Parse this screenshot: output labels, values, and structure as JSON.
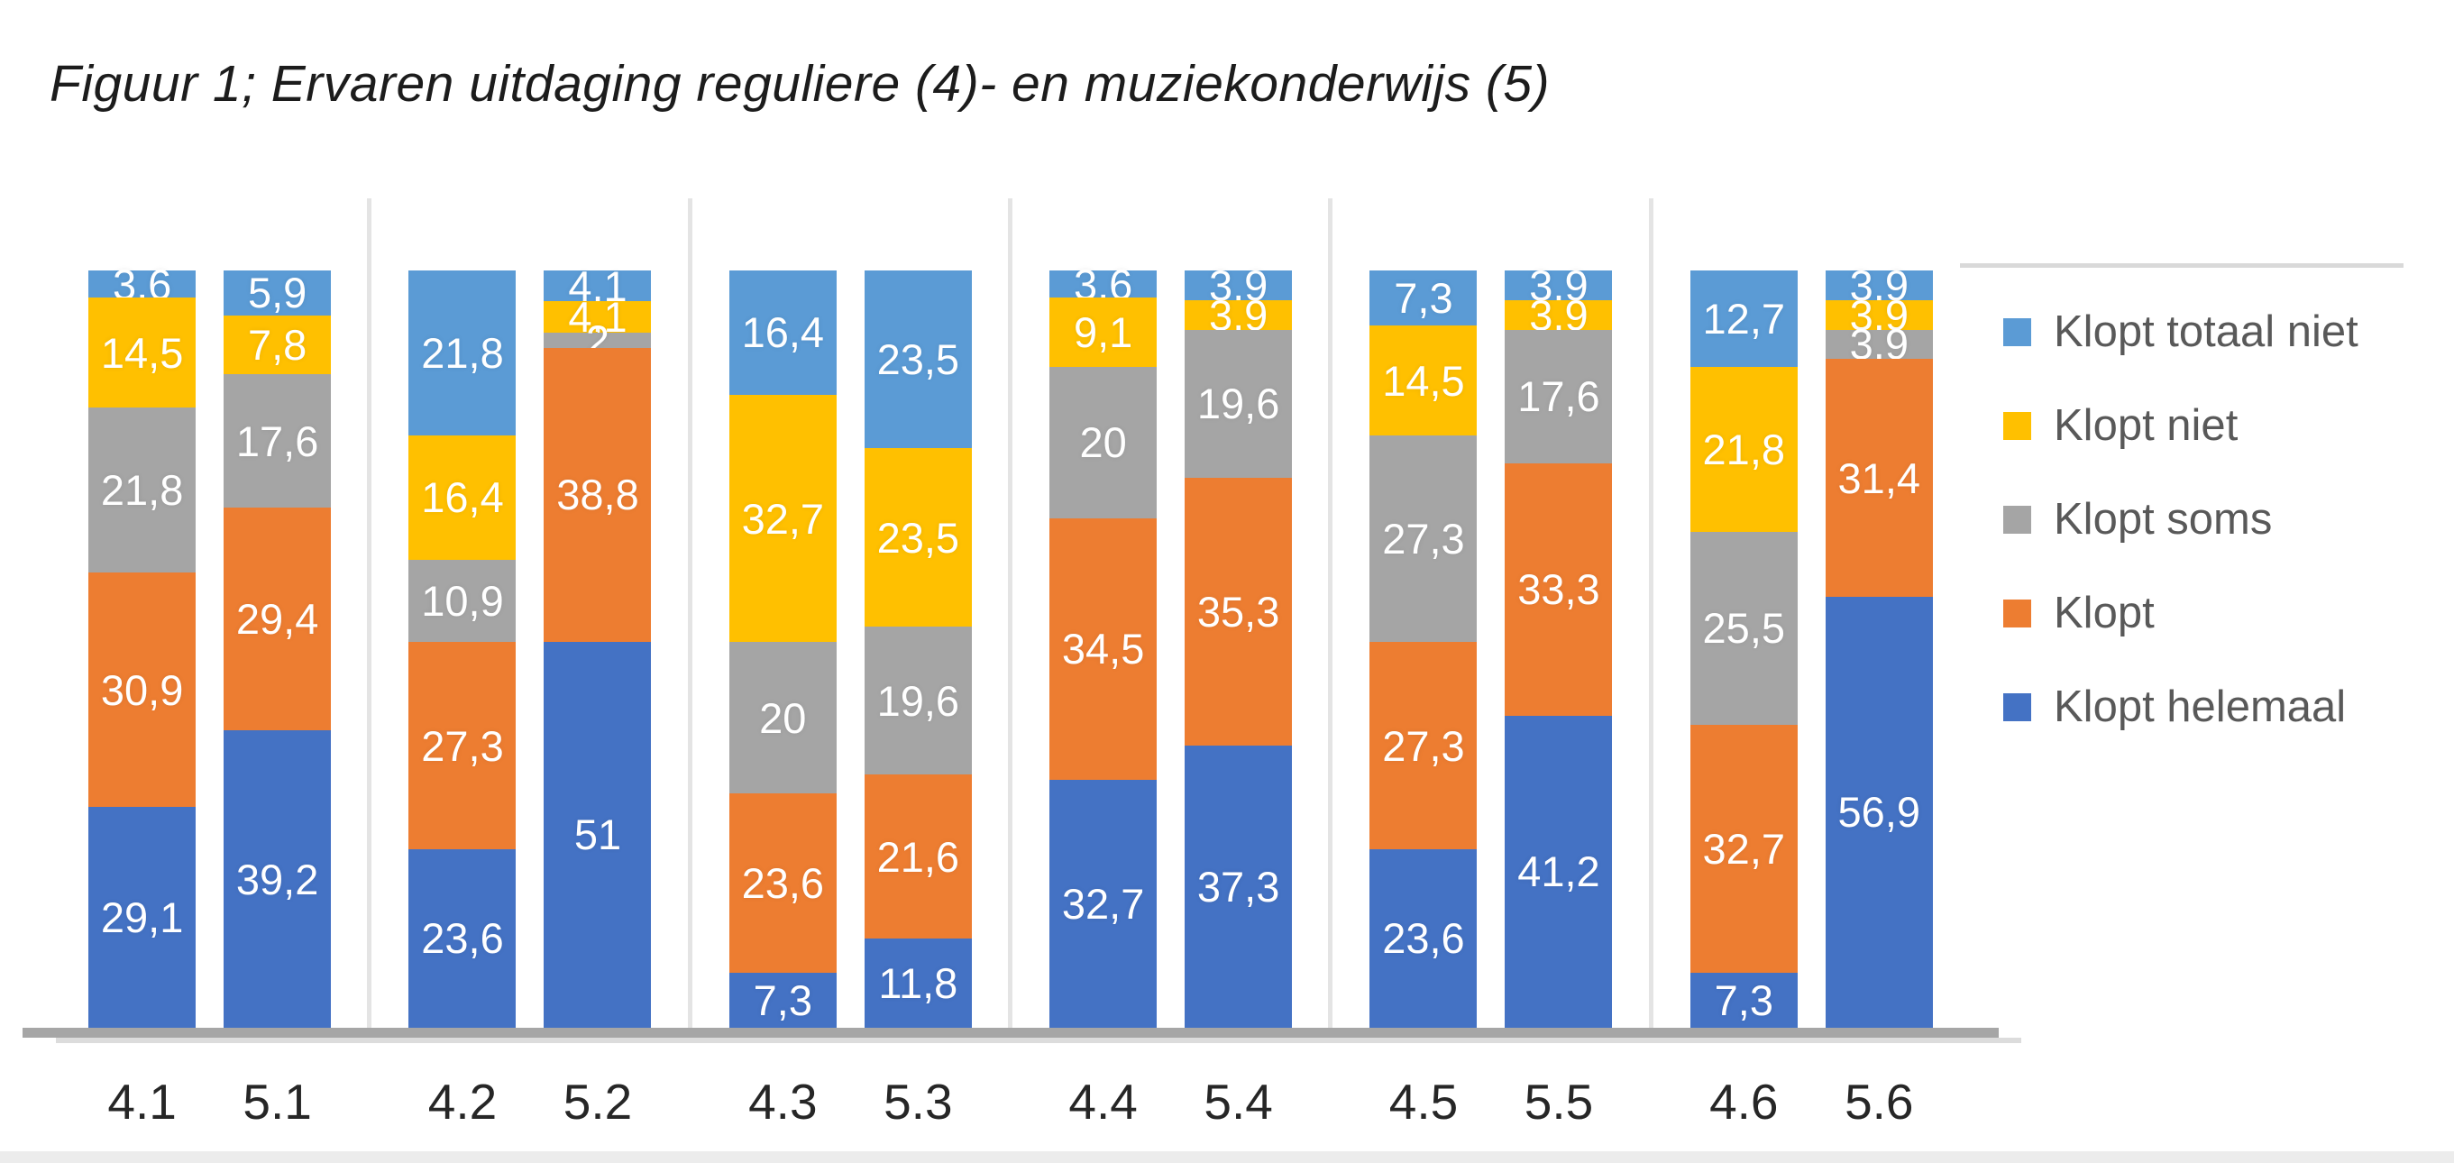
{
  "figure": {
    "title": "Figuur 1; Ervaren uitdaging reguliere (4)- en muziekonderwijs (5)"
  },
  "chart_data": {
    "type": "bar",
    "subtype": "stacked-100-percent-vertical",
    "title": "Figuur 1; Ervaren uitdaging reguliere (4)- en muziekonderwijs (5)",
    "xlabel": "",
    "ylabel": "",
    "grid": false,
    "value_decimal_separator": ",",
    "categories": [
      "4.1",
      "5.1",
      "4.2",
      "5.2",
      "4.3",
      "5.3",
      "4.4",
      "5.4",
      "4.5",
      "5.5",
      "4.6",
      "5.6"
    ],
    "category_group_size": 2,
    "series_bottom_to_top": [
      {
        "name": "Klopt helemaal",
        "color": "#4472c4",
        "values": [
          29.1,
          39.2,
          23.6,
          51,
          7.3,
          11.8,
          32.7,
          37.3,
          23.6,
          41.2,
          7.3,
          56.9
        ]
      },
      {
        "name": "Klopt",
        "color": "#ed7d31",
        "values": [
          30.9,
          29.4,
          27.3,
          38.8,
          23.6,
          21.6,
          34.5,
          35.3,
          27.3,
          33.3,
          32.7,
          31.4
        ]
      },
      {
        "name": "Klopt soms",
        "color": "#a5a5a5",
        "values": [
          21.8,
          17.6,
          10.9,
          2,
          20,
          19.6,
          20,
          19.6,
          27.3,
          17.6,
          25.5,
          3.9
        ]
      },
      {
        "name": "Klopt niet",
        "color": "#ffc000",
        "values": [
          14.5,
          7.8,
          16.4,
          4.1,
          32.7,
          23.5,
          9.1,
          3.9,
          14.5,
          3.9,
          21.8,
          3.9
        ]
      },
      {
        "name": "Klopt totaal niet",
        "color": "#5b9bd5",
        "values": [
          3.6,
          5.9,
          21.8,
          4.1,
          16.4,
          23.5,
          3.6,
          3.9,
          7.3,
          3.9,
          12.7,
          3.9
        ]
      }
    ],
    "legend": {
      "position": "right",
      "entries_top_to_bottom": [
        "Klopt totaal niet",
        "Klopt niet",
        "Klopt soms",
        "Klopt",
        "Klopt helemaal"
      ]
    },
    "label_color": "#ffffff",
    "axis_line_color": "#a6a6a6",
    "divider_line_color": "#e4e4e4"
  }
}
